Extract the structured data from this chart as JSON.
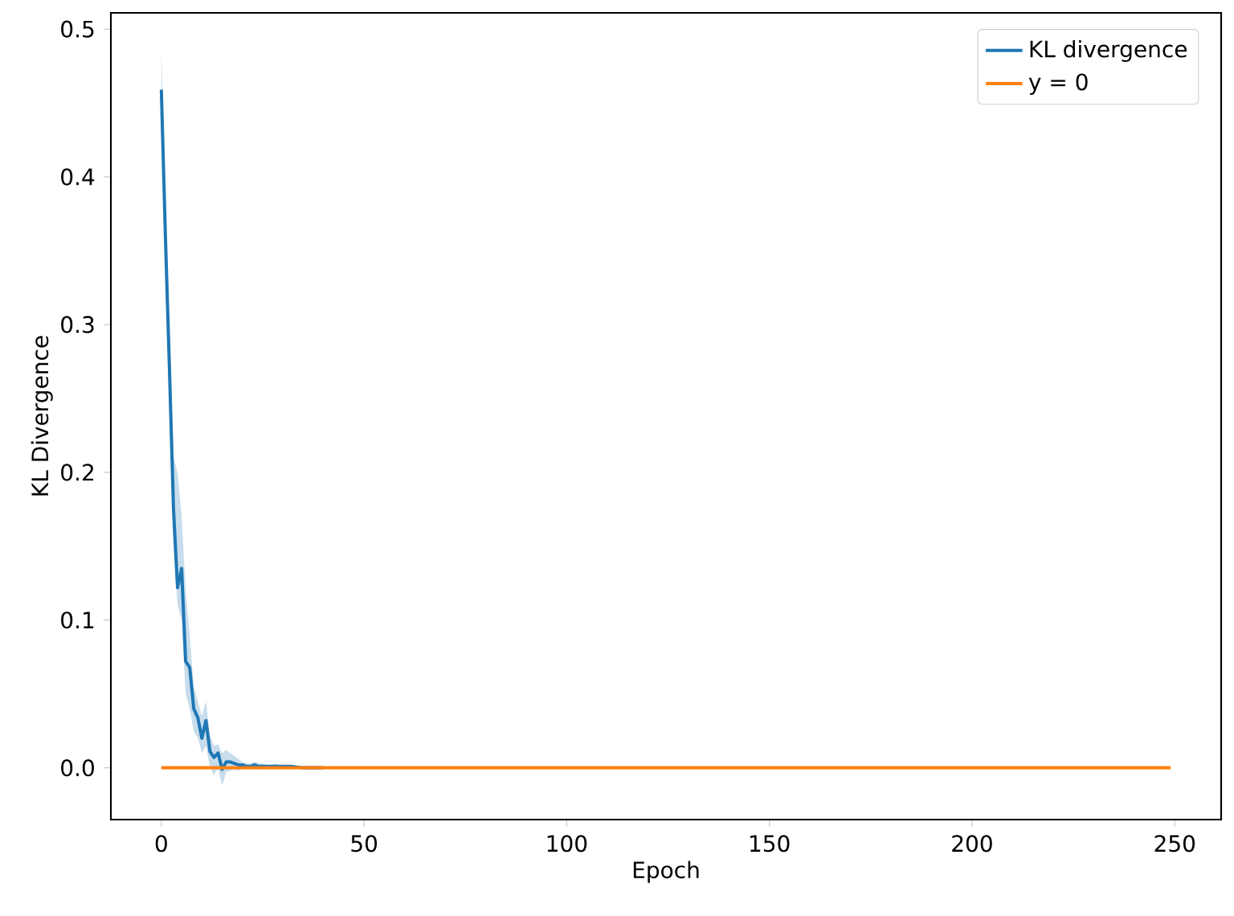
{
  "chart_data": {
    "type": "line",
    "xlabel": "Epoch",
    "ylabel": "KL Divergence",
    "xlim": [
      -12.45,
      261.45
    ],
    "ylim": [
      -0.035,
      0.511
    ],
    "xticks": [
      0,
      50,
      100,
      150,
      200,
      250
    ],
    "yticks": [
      {
        "value": 0,
        "label": "0.0"
      },
      {
        "value": 0.1,
        "label": "0.1"
      },
      {
        "value": 0.2,
        "label": "0.2"
      },
      {
        "value": 0.3,
        "label": "0.3"
      },
      {
        "value": 0.4,
        "label": "0.4"
      },
      {
        "value": 0.5,
        "label": "0.5"
      }
    ],
    "legend": "top right",
    "grid": false,
    "series": [
      {
        "name": "KL divergence",
        "color": "#1f77b4",
        "x": [
          0,
          1,
          2,
          3,
          4,
          5,
          6,
          7,
          8,
          9,
          10,
          11,
          12,
          13,
          14,
          15,
          16,
          17,
          18,
          19,
          20,
          21,
          22,
          23,
          24,
          25,
          26,
          27,
          28,
          29,
          30,
          32,
          35,
          40,
          50,
          100,
          150,
          200,
          249
        ],
        "values": [
          0.459,
          0.36,
          0.27,
          0.175,
          0.122,
          0.135,
          0.072,
          0.068,
          0.04,
          0.034,
          0.02,
          0.032,
          0.011,
          0.007,
          0.01,
          -0.001,
          0.004,
          0.004,
          0.003,
          0.002,
          0.002,
          0.001,
          0.001,
          0.002,
          0.001,
          0.001,
          0.001,
          0.001,
          0.001,
          0.001,
          0.001,
          0.001,
          0,
          0,
          null,
          null,
          null,
          null,
          null
        ],
        "upper": [
          0.486,
          0.38,
          0.3,
          0.21,
          0.2,
          0.17,
          0.12,
          0.09,
          0.055,
          0.045,
          0.035,
          0.045,
          0.022,
          0.015,
          0.016,
          0.01,
          0.012,
          0.01,
          0.008,
          0.006,
          0.004,
          0.003,
          0.003,
          0.004,
          0.003,
          0.003,
          0.002,
          0.002,
          0.003,
          0.002,
          0.002,
          0.002,
          0.001,
          0,
          0,
          0,
          0,
          0,
          0
        ],
        "lower": [
          0.44,
          0.34,
          0.24,
          0.15,
          0.11,
          0.1,
          0.05,
          0.04,
          0.025,
          0.02,
          0.01,
          0.015,
          0,
          -0.005,
          0,
          -0.012,
          -0.003,
          -0.002,
          -0.001,
          -0.002,
          0,
          -0.001,
          -0.001,
          0,
          -0.001,
          -0.001,
          0,
          0,
          0,
          -0.001,
          0,
          0,
          0,
          0,
          0,
          0,
          0,
          0,
          0
        ]
      },
      {
        "name": "y = 0",
        "color": "#ff7f0e",
        "x": [
          0,
          249
        ],
        "values": [
          0,
          0
        ]
      }
    ]
  }
}
